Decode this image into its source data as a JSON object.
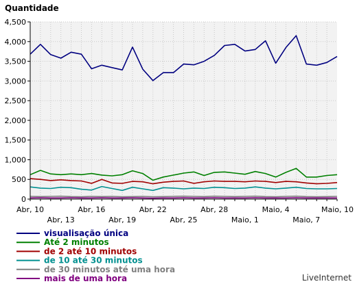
{
  "chart_data": {
    "type": "line",
    "title": "Quantidade",
    "credit": "LiveInternet",
    "ylim": [
      0,
      4500
    ],
    "yticks": [
      0,
      500,
      1000,
      1500,
      2000,
      2500,
      3000,
      3500,
      4000,
      4500
    ],
    "ytick_labels": [
      "0",
      "500",
      "1,000",
      "1,500",
      "2,000",
      "2,500",
      "3,000",
      "3,500",
      "4,000",
      "4,500"
    ],
    "categories": [
      "Abr, 10",
      "Abr, 11",
      "Abr, 12",
      "Abr, 13",
      "Abr, 14",
      "Abr, 15",
      "Abr, 16",
      "Abr, 17",
      "Abr, 18",
      "Abr, 19",
      "Abr, 20",
      "Abr, 21",
      "Abr, 22",
      "Abr, 23",
      "Abr, 24",
      "Abr, 25",
      "Abr, 26",
      "Abr, 27",
      "Abr, 28",
      "Abr, 29",
      "Abr, 30",
      "Maio, 1",
      "Maio, 2",
      "Maio, 3",
      "Maio, 4",
      "Maio, 5",
      "Maio, 6",
      "Maio, 7",
      "Maio, 8",
      "Maio, 9",
      "Maio, 10"
    ],
    "xtick_labels": [
      {
        "index": 0,
        "label": "Abr, 10",
        "row": 1
      },
      {
        "index": 3,
        "label": "Abr, 13",
        "row": 2
      },
      {
        "index": 6,
        "label": "Abr, 16",
        "row": 1
      },
      {
        "index": 9,
        "label": "Abr, 19",
        "row": 2
      },
      {
        "index": 12,
        "label": "Abr, 22",
        "row": 1
      },
      {
        "index": 15,
        "label": "Abr, 25",
        "row": 2
      },
      {
        "index": 18,
        "label": "Abr, 28",
        "row": 1
      },
      {
        "index": 21,
        "label": "Maio, 1",
        "row": 2
      },
      {
        "index": 24,
        "label": "Maio, 4",
        "row": 1
      },
      {
        "index": 27,
        "label": "Maio, 7",
        "row": 2
      },
      {
        "index": 30,
        "label": "Maio, 10",
        "row": 1
      }
    ],
    "grid": true,
    "legend_position": "bottom-left",
    "series": [
      {
        "name": "visualisação única",
        "color": "#000080",
        "values": [
          3680,
          3930,
          3670,
          3580,
          3730,
          3680,
          3310,
          3400,
          3340,
          3280,
          3860,
          3300,
          3010,
          3210,
          3210,
          3430,
          3410,
          3500,
          3650,
          3900,
          3930,
          3760,
          3800,
          4020,
          3450,
          3850,
          4150,
          3430,
          3400,
          3470,
          3620
        ]
      },
      {
        "name": "Até 2 minutos",
        "color": "#008000",
        "values": [
          620,
          730,
          640,
          620,
          640,
          620,
          650,
          610,
          590,
          620,
          720,
          650,
          480,
          560,
          610,
          660,
          690,
          600,
          680,
          690,
          660,
          630,
          700,
          650,
          560,
          680,
          780,
          560,
          560,
          600,
          620
        ]
      },
      {
        "name": "de 2 até 10 minutos",
        "color": "#A00000",
        "values": [
          520,
          500,
          470,
          490,
          470,
          460,
          400,
          500,
          410,
          400,
          450,
          440,
          390,
          430,
          450,
          460,
          400,
          440,
          460,
          450,
          450,
          440,
          460,
          450,
          420,
          450,
          440,
          410,
          390,
          400,
          420
        ]
      },
      {
        "name": "de 10 até 30 minutos",
        "color": "#009090",
        "values": [
          310,
          280,
          270,
          300,
          290,
          250,
          230,
          320,
          270,
          220,
          300,
          260,
          220,
          290,
          280,
          260,
          280,
          270,
          300,
          290,
          270,
          280,
          310,
          280,
          260,
          280,
          300,
          270,
          260,
          260,
          270
        ]
      },
      {
        "name": "de 30 minutos até uma hora",
        "color": "#808080",
        "values": [
          70,
          65,
          70,
          75,
          65,
          60,
          70,
          65,
          70,
          60,
          65,
          70,
          60,
          65,
          70,
          75,
          70,
          65,
          75,
          70,
          65,
          70,
          75,
          65,
          60,
          70,
          75,
          65,
          60,
          65,
          70
        ]
      },
      {
        "name": "mais de uma hora",
        "color": "#800080",
        "values": [
          30,
          35,
          30,
          30,
          35,
          30,
          30,
          35,
          30,
          30,
          35,
          30,
          25,
          30,
          30,
          35,
          30,
          30,
          35,
          30,
          30,
          30,
          35,
          30,
          30,
          30,
          35,
          30,
          30,
          30,
          30
        ]
      }
    ]
  }
}
